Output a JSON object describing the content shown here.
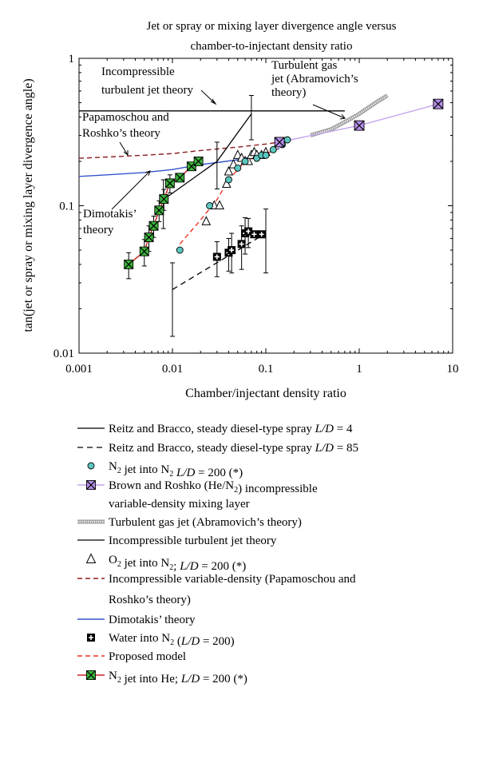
{
  "chart_data": {
    "type": "scatter",
    "title": [
      "Jet or spray or mixing layer divergence angle versus",
      "chamber-to-injectant density ratio"
    ],
    "xlabel": "Chamber/injectant density ratio",
    "ylabel": "tan(jet or spray or mixing layer divergence angle)",
    "xscale": "log",
    "yscale": "log",
    "xlim": [
      0.001,
      10
    ],
    "ylim": [
      0.01,
      1
    ],
    "xticks": [
      {
        "v": 0.001,
        "label": "0.001"
      },
      {
        "v": 0.01,
        "label": "0.01"
      },
      {
        "v": 0.1,
        "label": "0.1"
      },
      {
        "v": 1,
        "label": "1"
      },
      {
        "v": 10,
        "label": "10"
      }
    ],
    "yticks": [
      {
        "v": 0.01,
        "label": "0.01"
      },
      {
        "v": 0.1,
        "label": "0.1"
      },
      {
        "v": 1,
        "label": "1"
      }
    ],
    "legend_placement": "below",
    "annotations": [
      {
        "id": "incompressible",
        "lines": [
          "Incompressible",
          "turbulent jet theory"
        ]
      },
      {
        "id": "abramovich",
        "lines": [
          "Turbulent gas",
          "jet (Abramovich’s",
          "theory)"
        ]
      },
      {
        "id": "papamoschou",
        "lines": [
          "Papamoschou and",
          "Roshko’s theory"
        ]
      },
      {
        "id": "dimotakis",
        "lines": [
          "Dimotakis’",
          "theory"
        ]
      }
    ],
    "series": [
      {
        "key": "reitz4",
        "style": "solid",
        "color": "#000000",
        "x": [
          0.008,
          0.03,
          0.07
        ],
        "y": [
          0.11,
          0.2,
          0.42
        ],
        "err": [
          0.04,
          0.07,
          0.14
        ],
        "legend": [
          {
            "t": "Reitz and Bracco, steady diesel-type spray "
          },
          {
            "t": "L/D",
            "i": true
          },
          {
            "t": " = 4"
          }
        ]
      },
      {
        "key": "reitz85",
        "style": "dashed",
        "color": "#000000",
        "x": [
          0.01,
          0.1
        ],
        "y": [
          0.027,
          0.065
        ],
        "err": [
          0.014,
          0.03
        ],
        "legend": [
          {
            "t": "Reitz and Bracco, steady diesel-type spray "
          },
          {
            "t": "L/D",
            "i": true
          },
          {
            "t": " = 85"
          }
        ]
      },
      {
        "key": "n2n2",
        "marker": "circle",
        "color": "#5bc8c0",
        "x": [
          0.012,
          0.025,
          0.04,
          0.05,
          0.06,
          0.08,
          0.09,
          0.1,
          0.12,
          0.15,
          0.17
        ],
        "y": [
          0.05,
          0.1,
          0.15,
          0.18,
          0.2,
          0.21,
          0.22,
          0.22,
          0.24,
          0.26,
          0.28
        ],
        "legend": [
          {
            "t": "N"
          },
          {
            "t": "2",
            "sub": true
          },
          {
            "t": " jet into N"
          },
          {
            "t": "2",
            "sub": true
          },
          {
            "t": " "
          },
          {
            "t": "L/D",
            "i": true
          },
          {
            "t": " = 200 (*)"
          }
        ]
      },
      {
        "key": "brown",
        "marker": "x-square",
        "color": "#b38ee8",
        "lineColor": "#c4a3ee",
        "x": [
          0.14,
          1,
          7
        ],
        "y": [
          0.27,
          0.35,
          0.49
        ],
        "legend": [
          {
            "t": "Brown and Roshko (He/N"
          },
          {
            "t": "2",
            "sub": true
          },
          {
            "t": ") incompressible"
          }
        ],
        "legend2": [
          {
            "t": "variable-density mixing layer"
          }
        ]
      },
      {
        "key": "abramovich",
        "style": "hatched",
        "color": "#999999",
        "x": [
          0.3,
          0.5,
          0.7,
          1,
          1.5,
          2
        ],
        "y": [
          0.3,
          0.33,
          0.37,
          0.42,
          0.5,
          0.56
        ],
        "legend": [
          {
            "t": "Turbulent gas jet (Abramovich’s theory)"
          }
        ]
      },
      {
        "key": "incompressible",
        "style": "solid",
        "color": "#000000",
        "x": [
          0.001,
          0.7
        ],
        "y": [
          0.44,
          0.44
        ],
        "legend": [
          {
            "t": "Incompressible turbulent jet theory"
          }
        ]
      },
      {
        "key": "o2n2",
        "marker": "triangle",
        "color": "#000000",
        "x": [
          0.023,
          0.028,
          0.032,
          0.038,
          0.04,
          0.045,
          0.05,
          0.055,
          0.06,
          0.065,
          0.07,
          0.075,
          0.08,
          0.09,
          0.1
        ],
        "y": [
          0.078,
          0.1,
          0.1,
          0.14,
          0.17,
          0.19,
          0.22,
          0.21,
          0.2,
          0.2,
          0.22,
          0.23,
          0.22,
          0.22,
          0.23
        ],
        "legend": [
          {
            "t": "O"
          },
          {
            "t": "2",
            "sub": true
          },
          {
            "t": " jet into N"
          },
          {
            "t": "2",
            "sub": true
          },
          {
            "t": "; "
          },
          {
            "t": "L/D",
            "i": true
          },
          {
            "t": " = 200 (*)"
          }
        ]
      },
      {
        "key": "papamoschou",
        "style": "dashed",
        "color": "#8b1a1a",
        "x": [
          0.001,
          0.002,
          0.005,
          0.01,
          0.02,
          0.05,
          0.1,
          0.14
        ],
        "y": [
          0.21,
          0.214,
          0.22,
          0.226,
          0.237,
          0.25,
          0.262,
          0.27
        ],
        "legend": [
          {
            "t": "Incompressible variable-density (Papamoschou and"
          }
        ],
        "legend2": [
          {
            "t": "Roshko’s theory)"
          }
        ]
      },
      {
        "key": "dimotakis",
        "style": "solid",
        "color": "#3355cc",
        "x": [
          0.001,
          0.002,
          0.005,
          0.01,
          0.02,
          0.05,
          0.1,
          0.14
        ],
        "y": [
          0.158,
          0.162,
          0.168,
          0.176,
          0.19,
          0.205,
          0.225,
          0.245
        ],
        "legend": [
          {
            "t": "Dimotakis’ theory"
          }
        ]
      },
      {
        "key": "water",
        "marker": "plus-square",
        "color": "#000000",
        "x": [
          0.03,
          0.04,
          0.043,
          0.055,
          0.06,
          0.065,
          0.075,
          0.09
        ],
        "y": [
          0.045,
          0.048,
          0.05,
          0.055,
          0.065,
          0.067,
          0.064,
          0.064
        ],
        "err": [
          0.012,
          0.012,
          0.015,
          0.018,
          0.018,
          0.015,
          0.0,
          0.0
        ],
        "legend": [
          {
            "t": "Water into N"
          },
          {
            "t": "2",
            "sub": true
          },
          {
            "t": " ("
          },
          {
            "t": "L/D",
            "i": true
          },
          {
            "t": " = 200)"
          }
        ]
      },
      {
        "key": "proposed",
        "style": "dashed",
        "color": "#ee3322",
        "x": [
          0.012,
          0.02,
          0.03,
          0.04,
          0.06,
          0.09,
          0.13,
          0.15,
          0.17
        ],
        "y": [
          0.055,
          0.08,
          0.11,
          0.15,
          0.2,
          0.22,
          0.24,
          0.265,
          0.28
        ],
        "legend": [
          {
            "t": "Proposed model"
          }
        ]
      },
      {
        "key": "n2he",
        "marker": "x-square",
        "color": "#3cb33c",
        "lineColor": "#cc2222",
        "x": [
          0.0034,
          0.005,
          0.0056,
          0.0063,
          0.0072,
          0.0081,
          0.0094,
          0.012,
          0.016,
          0.019
        ],
        "y": [
          0.04,
          0.049,
          0.061,
          0.073,
          0.093,
          0.111,
          0.142,
          0.155,
          0.185,
          0.2
        ],
        "err": [
          0.008,
          0.01,
          0.012,
          0.012,
          0.015,
          0.018,
          0.02,
          0.0,
          0.0,
          0.0
        ],
        "legend": [
          {
            "t": "N"
          },
          {
            "t": "2",
            "sub": true
          },
          {
            "t": " jet into He; "
          },
          {
            "t": "L/D",
            "i": true
          },
          {
            "t": " = 200 (*)"
          }
        ]
      }
    ]
  }
}
